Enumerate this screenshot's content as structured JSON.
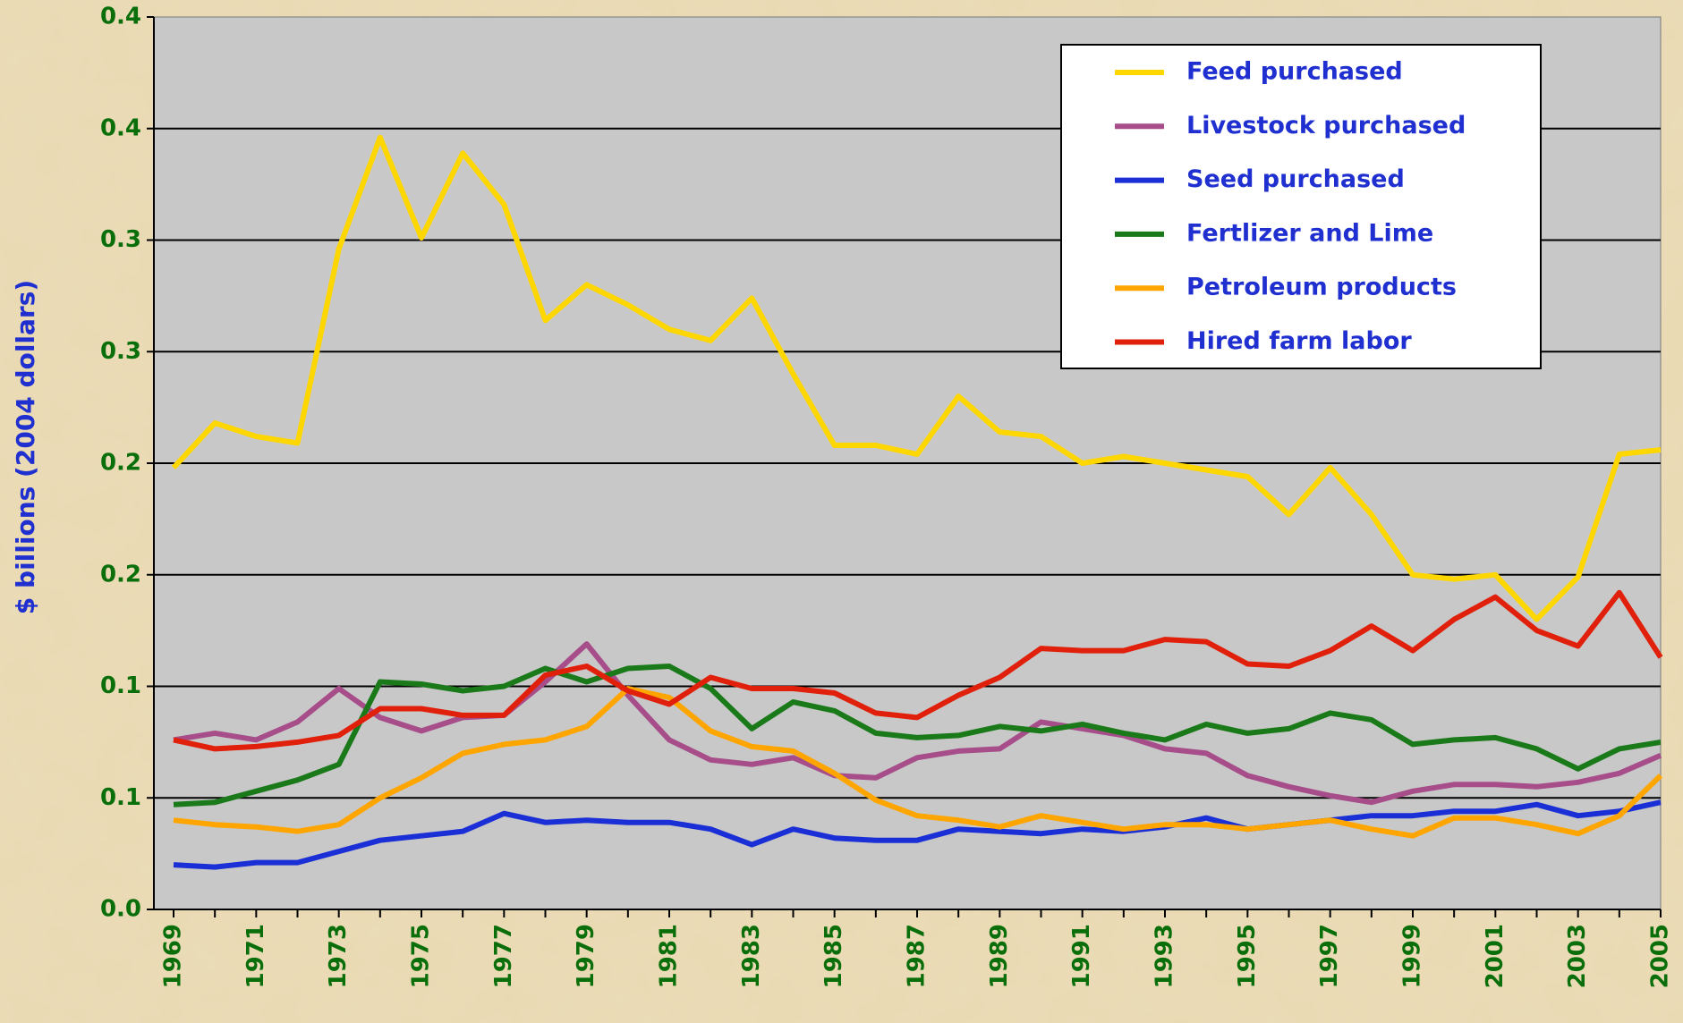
{
  "chart_data": {
    "type": "line",
    "ylabel": "$ billions (2004 dollars)",
    "categories": [
      "1969",
      null,
      "1971",
      null,
      "1973",
      null,
      "1975",
      null,
      "1977",
      null,
      "1979",
      null,
      "1981",
      null,
      "1983",
      null,
      "1985",
      null,
      "1987",
      null,
      "1989",
      null,
      "1991",
      null,
      "1993",
      null,
      "1995",
      null,
      "1997",
      null,
      "1999",
      null,
      "2001",
      null,
      "2003",
      null,
      "2005"
    ],
    "ylim": [
      0,
      0.4
    ],
    "yticks": [
      {
        "value": 0,
        "label": "0.0"
      },
      {
        "value": 0.05,
        "label": "0.1"
      },
      0.1,
      {
        "value": 0.15,
        "label": "0.2"
      },
      0.2,
      {
        "value": 0.25,
        "label": "0.3"
      },
      0.3,
      {
        "value": 0.35,
        "label": "0.4"
      },
      0.4
    ],
    "grid": true,
    "legend": "top-right",
    "series": [
      {
        "name": "Feed purchased",
        "color": "#ffd700",
        "values": [
          0.198,
          0.218,
          0.212,
          0.209,
          0.296,
          0.346,
          0.301,
          0.339,
          0.316,
          0.264,
          0.28,
          0.271,
          0.26,
          0.255,
          0.274,
          0.24,
          0.208,
          0.208,
          0.204,
          0.23,
          0.214,
          0.212,
          0.2,
          0.203,
          0.2,
          0.197,
          0.194,
          0.177,
          0.198,
          0.177,
          0.15,
          0.148,
          0.15,
          0.13,
          0.149,
          0.204,
          0.206
        ]
      },
      {
        "name": "Livestock purchased",
        "color": "#a64d8a",
        "values": [
          0.076,
          0.079,
          0.076,
          0.084,
          0.099,
          0.086,
          0.08,
          0.086,
          0.087,
          0.102,
          0.119,
          0.096,
          0.076,
          0.067,
          0.065,
          0.068,
          0.06,
          0.059,
          0.068,
          0.071,
          0.072,
          0.084,
          0.081,
          0.078,
          0.072,
          0.07,
          0.06,
          0.055,
          0.051,
          0.048,
          0.053,
          0.056,
          0.056,
          0.055,
          0.057,
          0.061,
          0.069
        ]
      },
      {
        "name": "Seed purchased",
        "color": "#1a2fd6",
        "values": [
          0.02,
          0.019,
          0.021,
          0.021,
          0.026,
          0.031,
          0.033,
          0.035,
          0.043,
          0.039,
          0.04,
          0.039,
          0.039,
          0.036,
          0.029,
          0.036,
          0.032,
          0.031,
          0.031,
          0.036,
          0.035,
          0.034,
          0.036,
          0.035,
          0.037,
          0.041,
          0.036,
          0.038,
          0.04,
          0.042,
          0.042,
          0.044,
          0.044,
          0.047,
          0.042,
          0.044,
          0.048
        ]
      },
      {
        "name": "Fertlizer and Lime",
        "color": "#1a7a1a",
        "values": [
          0.047,
          0.048,
          0.053,
          0.058,
          0.065,
          0.102,
          0.101,
          0.098,
          0.1,
          0.108,
          0.102,
          0.108,
          0.109,
          0.099,
          0.081,
          0.093,
          0.089,
          0.079,
          0.077,
          0.078,
          0.082,
          0.08,
          0.083,
          0.079,
          0.076,
          0.083,
          0.079,
          0.081,
          0.088,
          0.085,
          0.074,
          0.076,
          0.077,
          0.072,
          0.063,
          0.072,
          0.075
        ]
      },
      {
        "name": "Petroleum products",
        "color": "#ffa500",
        "values": [
          0.04,
          0.038,
          0.037,
          0.035,
          0.038,
          0.05,
          0.059,
          0.07,
          0.074,
          0.076,
          0.082,
          0.099,
          0.095,
          0.08,
          0.073,
          0.071,
          0.061,
          0.049,
          0.042,
          0.04,
          0.037,
          0.042,
          0.039,
          0.036,
          0.038,
          0.038,
          0.036,
          0.038,
          0.04,
          0.036,
          0.033,
          0.041,
          0.041,
          0.038,
          0.034,
          0.042,
          0.06
        ]
      },
      {
        "name": "Hired farm labor",
        "color": "#e0200a",
        "values": [
          0.076,
          0.072,
          0.073,
          0.075,
          0.078,
          0.09,
          0.09,
          0.087,
          0.087,
          0.105,
          0.109,
          0.098,
          0.092,
          0.104,
          0.099,
          0.099,
          0.097,
          0.088,
          0.086,
          0.096,
          0.104,
          0.117,
          0.116,
          0.116,
          0.121,
          0.12,
          0.11,
          0.109,
          0.116,
          0.127,
          0.116,
          0.13,
          0.14,
          0.125,
          0.118,
          0.142,
          0.113
        ]
      }
    ]
  }
}
